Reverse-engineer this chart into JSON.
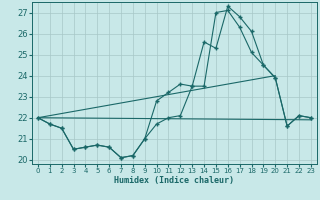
{
  "xlabel": "Humidex (Indice chaleur)",
  "xlim": [
    -0.5,
    23.5
  ],
  "ylim": [
    19.8,
    27.5
  ],
  "yticks": [
    20,
    21,
    22,
    23,
    24,
    25,
    26,
    27
  ],
  "xticks": [
    0,
    1,
    2,
    3,
    4,
    5,
    6,
    7,
    8,
    9,
    10,
    11,
    12,
    13,
    14,
    15,
    16,
    17,
    18,
    19,
    20,
    21,
    22,
    23
  ],
  "bg_color": "#c8e8e8",
  "grid_color": "#a8c8c8",
  "line_color": "#1a6868",
  "line1_x": [
    0,
    1,
    2,
    3,
    4,
    5,
    6,
    7,
    8,
    9,
    10,
    11,
    12,
    13,
    14,
    15,
    16,
    17,
    18,
    19,
    20,
    21,
    22,
    23
  ],
  "line1_y": [
    22.0,
    21.7,
    21.5,
    20.5,
    20.6,
    20.7,
    20.6,
    20.1,
    20.2,
    21.0,
    21.7,
    22.0,
    22.1,
    23.5,
    25.6,
    25.3,
    27.3,
    26.8,
    26.1,
    24.5,
    23.9,
    21.6,
    22.1,
    22.0
  ],
  "line2_x": [
    0,
    1,
    2,
    3,
    4,
    5,
    6,
    7,
    8,
    9,
    10,
    11,
    12,
    13,
    14,
    15,
    16,
    17,
    18,
    19,
    20,
    21,
    22,
    23
  ],
  "line2_y": [
    22.0,
    21.7,
    21.5,
    20.5,
    20.6,
    20.7,
    20.6,
    20.1,
    20.2,
    21.0,
    22.8,
    23.2,
    23.6,
    23.5,
    23.5,
    27.0,
    27.1,
    26.3,
    25.1,
    24.5,
    23.9,
    21.6,
    22.1,
    22.0
  ],
  "line3_x": [
    0,
    20
  ],
  "line3_y": [
    22.0,
    23.85
  ],
  "line4_x": [
    0,
    20
  ],
  "line4_y": [
    22.0,
    23.85
  ],
  "marker": "+",
  "markersize": 3.5,
  "linewidth": 0.8
}
